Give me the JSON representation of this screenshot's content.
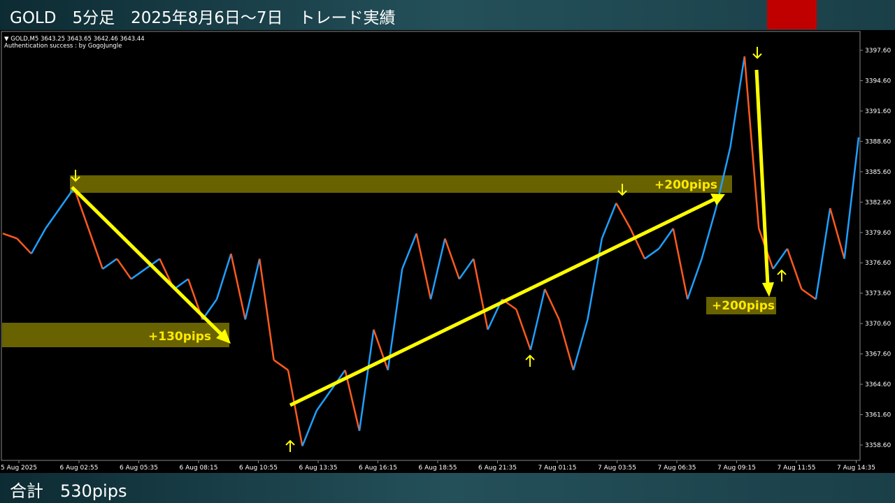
{
  "header": {
    "title": "GOLD　5分足　2025年8月6日～7日　トレード実績"
  },
  "chart_info": {
    "symbol_line": "▼ GOLD,M5  3643.25 3643.65 3642.46 3643.44",
    "auth_line": "Authentication success : by GogoJungle"
  },
  "ylim": [
    3358.6,
    3397.6
  ],
  "yticks": [
    {
      "value": 3358.6,
      "label": "3358.60"
    },
    {
      "value": 3361.6,
      "label": "3361.60"
    },
    {
      "value": 3364.6,
      "label": "3364.60"
    },
    {
      "value": 3367.6,
      "label": "3367.60"
    },
    {
      "value": 3370.6,
      "label": "3370.60"
    },
    {
      "value": 3373.6,
      "label": "3373.60"
    },
    {
      "value": 3376.6,
      "label": "3376.60"
    },
    {
      "value": 3379.6,
      "label": "3379.60"
    },
    {
      "value": 3382.6,
      "label": "3382.60"
    },
    {
      "value": 3385.6,
      "label": "3385.60"
    },
    {
      "value": 3388.6,
      "label": "3388.60"
    },
    {
      "value": 3391.6,
      "label": "3391.60"
    },
    {
      "value": 3394.6,
      "label": "3394.60"
    },
    {
      "value": 3397.6,
      "label": "3397.60"
    }
  ],
  "xlabels": [
    "5 Aug 2025",
    "6 Aug 02:55",
    "6 Aug 05:35",
    "6 Aug 08:15",
    "6 Aug 10:55",
    "6 Aug 13:35",
    "6 Aug 16:15",
    "6 Aug 18:55",
    "6 Aug 21:35",
    "7 Aug 01:15",
    "7 Aug 03:55",
    "7 Aug 06:35",
    "7 Aug 09:15",
    "7 Aug 11:55",
    "7 Aug 14:35"
  ],
  "price": [
    3379.5,
    3379,
    3377.5,
    3380,
    3382,
    3384,
    3380,
    3376,
    3377,
    3375,
    3376,
    3377,
    3374,
    3375,
    3371,
    3373,
    3377.5,
    3371,
    3377,
    3367,
    3366,
    3358.5,
    3362,
    3364,
    3366,
    3360,
    3370,
    3366,
    3376,
    3379.5,
    3373,
    3379,
    3375,
    3377,
    3370,
    3373,
    3372,
    3368,
    3374,
    3371,
    3366,
    3371,
    3379,
    3382.5,
    3380,
    3377,
    3378,
    3380,
    3373,
    3377,
    3382,
    3388,
    3397,
    3380,
    3376,
    3378,
    3374,
    3373,
    3382,
    3377,
    3389
  ],
  "annotations": [
    "+130pips",
    "+200pips",
    "+200pips"
  ],
  "footer": {
    "total": "合計　530pips"
  }
}
